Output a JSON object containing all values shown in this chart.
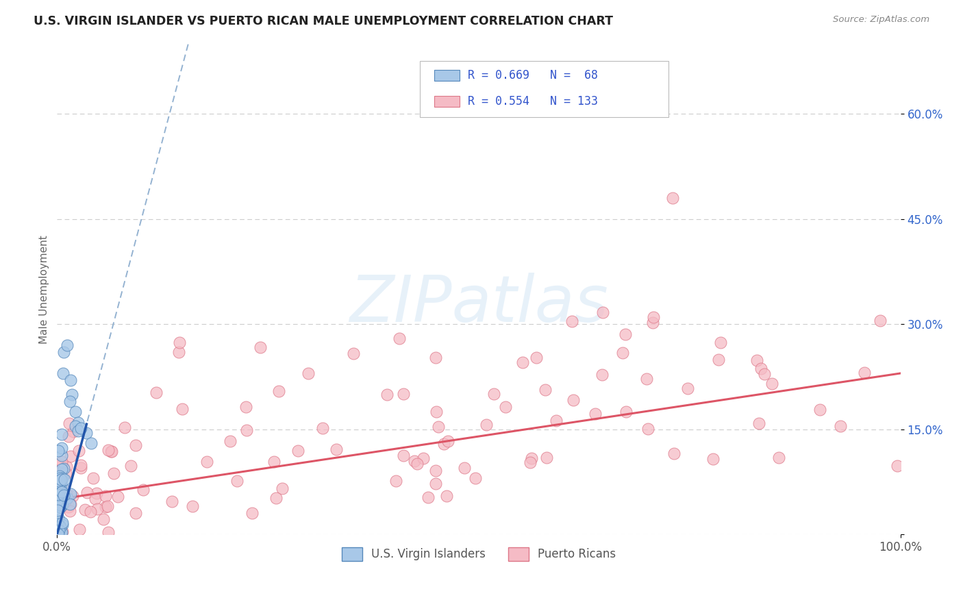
{
  "title": "U.S. VIRGIN ISLANDER VS PUERTO RICAN MALE UNEMPLOYMENT CORRELATION CHART",
  "source": "Source: ZipAtlas.com",
  "ylabel": "Male Unemployment",
  "xlim": [
    0.0,
    1.0
  ],
  "ylim": [
    0.0,
    0.7
  ],
  "xticks": [
    0.0,
    1.0
  ],
  "xticklabels": [
    "0.0%",
    "100.0%"
  ],
  "ytick_positions": [
    0.0,
    0.15,
    0.3,
    0.45,
    0.6
  ],
  "ytick_labels": [
    "",
    "15.0%",
    "30.0%",
    "45.0%",
    "60.0%"
  ],
  "background_color": "#ffffff",
  "grid_color": "#cccccc",
  "watermark_text": "ZIPatlas",
  "series": [
    {
      "name": "U.S. Virgin Islanders",
      "R": 0.669,
      "N": 68,
      "color": "#a8c8e8",
      "edge_color": "#5588bb",
      "trend_solid_color": "#2255aa",
      "trend_dash_color": "#88aacc"
    },
    {
      "name": "Puerto Ricans",
      "R": 0.554,
      "N": 133,
      "color": "#f5bbc5",
      "edge_color": "#dd7788",
      "trend_color": "#dd5566"
    }
  ],
  "legend_text_color": "#3355cc",
  "title_color": "#222222",
  "source_color": "#888888",
  "vi_trend_slope": 4.5,
  "vi_trend_intercept": 0.0,
  "pr_trend_slope": 0.18,
  "pr_trend_intercept": 0.05
}
